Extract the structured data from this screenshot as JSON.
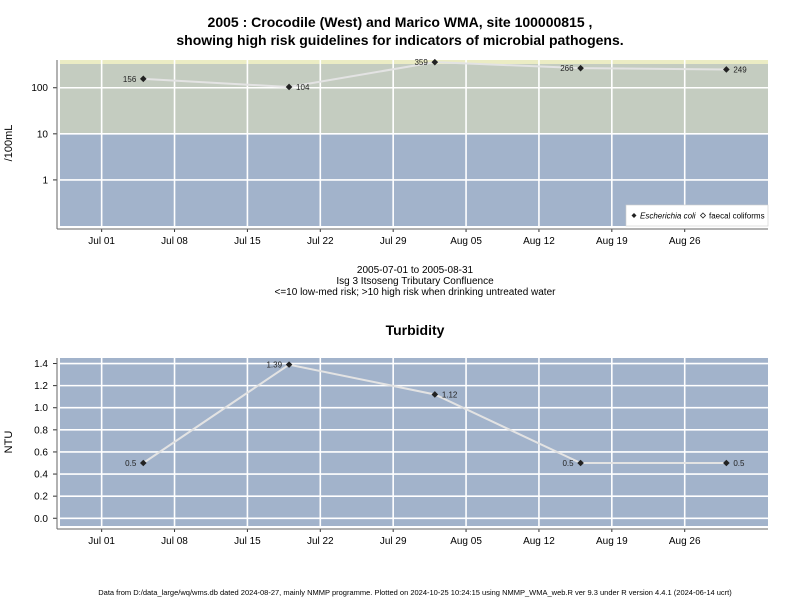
{
  "header": {
    "title_line1": "2005 : Crocodile (West) and Marico WMA, site 100000815 ,",
    "title_line2": "showing high risk guidelines for indicators of microbial pathogens."
  },
  "subtitle": {
    "date_range": "2005-07-01 to 2005-08-31",
    "site_name": "Isg 3 Itsoseng Tributary Confluence",
    "risk_note": "<=10 low-med risk; >10 high risk when drinking untreated water"
  },
  "footer": {
    "text": "Data from D:/data_large/wq/wms.db dated 2024-08-27, mainly NMMP programme. Plotted on 2024-10-25 10:24:15 using NMMP_WMA_web.R ver 9.3 under R version 4.4.1 (2024-06-14 ucrt)"
  },
  "colors": {
    "low_band": "#a2b3cb",
    "high_band": "#c4ccc0",
    "top_strip": "#ebecc4",
    "line": "#e3e3e3",
    "grid": "#ffffff"
  },
  "chart_data": [
    {
      "type": "line",
      "title": "",
      "ylabel": "/100mL",
      "yscale": "log",
      "ylim": [
        0.1,
        400
      ],
      "yticks": [
        1,
        10,
        100
      ],
      "ytick_labels": [
        "1",
        "10",
        "100"
      ],
      "xlim": [
        "2005-06-27",
        "2005-09-03"
      ],
      "xticks": [
        "2005-07-01",
        "2005-07-08",
        "2005-07-15",
        "2005-07-22",
        "2005-07-29",
        "2005-08-05",
        "2005-08-12",
        "2005-08-19",
        "2005-08-26"
      ],
      "xtick_labels": [
        "Jul 01",
        "Jul 08",
        "Jul 15",
        "Jul 22",
        "Jul 29",
        "Aug 05",
        "Aug 12",
        "Aug 19",
        "Aug 26"
      ],
      "threshold": 10,
      "grid": true,
      "legend_position": "bottom-right",
      "series": [
        {
          "name": "Escherichia coli",
          "x": [
            "2005-07-05",
            "2005-07-19",
            "2005-08-02",
            "2005-08-16",
            "2005-08-30"
          ],
          "y": [
            156,
            104,
            359,
            266,
            249
          ],
          "labels": [
            "156",
            "104",
            "359",
            "266",
            "249"
          ]
        },
        {
          "name": "faecal coliforms",
          "x": [],
          "y": [],
          "labels": []
        }
      ]
    },
    {
      "type": "line",
      "title": "Turbidity",
      "ylabel": "NTU",
      "ylim": [
        -0.07,
        1.45
      ],
      "yticks": [
        0.0,
        0.2,
        0.4,
        0.6,
        0.8,
        1.0,
        1.2,
        1.4
      ],
      "ytick_labels": [
        "0.0",
        "0.2",
        "0.4",
        "0.6",
        "0.8",
        "1.0",
        "1.2",
        "1.4"
      ],
      "xlim": [
        "2005-06-27",
        "2005-09-03"
      ],
      "xticks": [
        "2005-07-01",
        "2005-07-08",
        "2005-07-15",
        "2005-07-22",
        "2005-07-29",
        "2005-08-05",
        "2005-08-12",
        "2005-08-19",
        "2005-08-26"
      ],
      "xtick_labels": [
        "Jul 01",
        "Jul 08",
        "Jul 15",
        "Jul 22",
        "Jul 29",
        "Aug 05",
        "Aug 12",
        "Aug 19",
        "Aug 26"
      ],
      "grid": true,
      "series": [
        {
          "name": "",
          "x": [
            "2005-07-05",
            "2005-07-19",
            "2005-08-02",
            "2005-08-16",
            "2005-08-30"
          ],
          "y": [
            0.5,
            1.39,
            1.12,
            0.5,
            0.5
          ],
          "labels": [
            "0.5",
            "1.39",
            "1.12",
            "0.5",
            "0.5"
          ]
        }
      ]
    }
  ]
}
